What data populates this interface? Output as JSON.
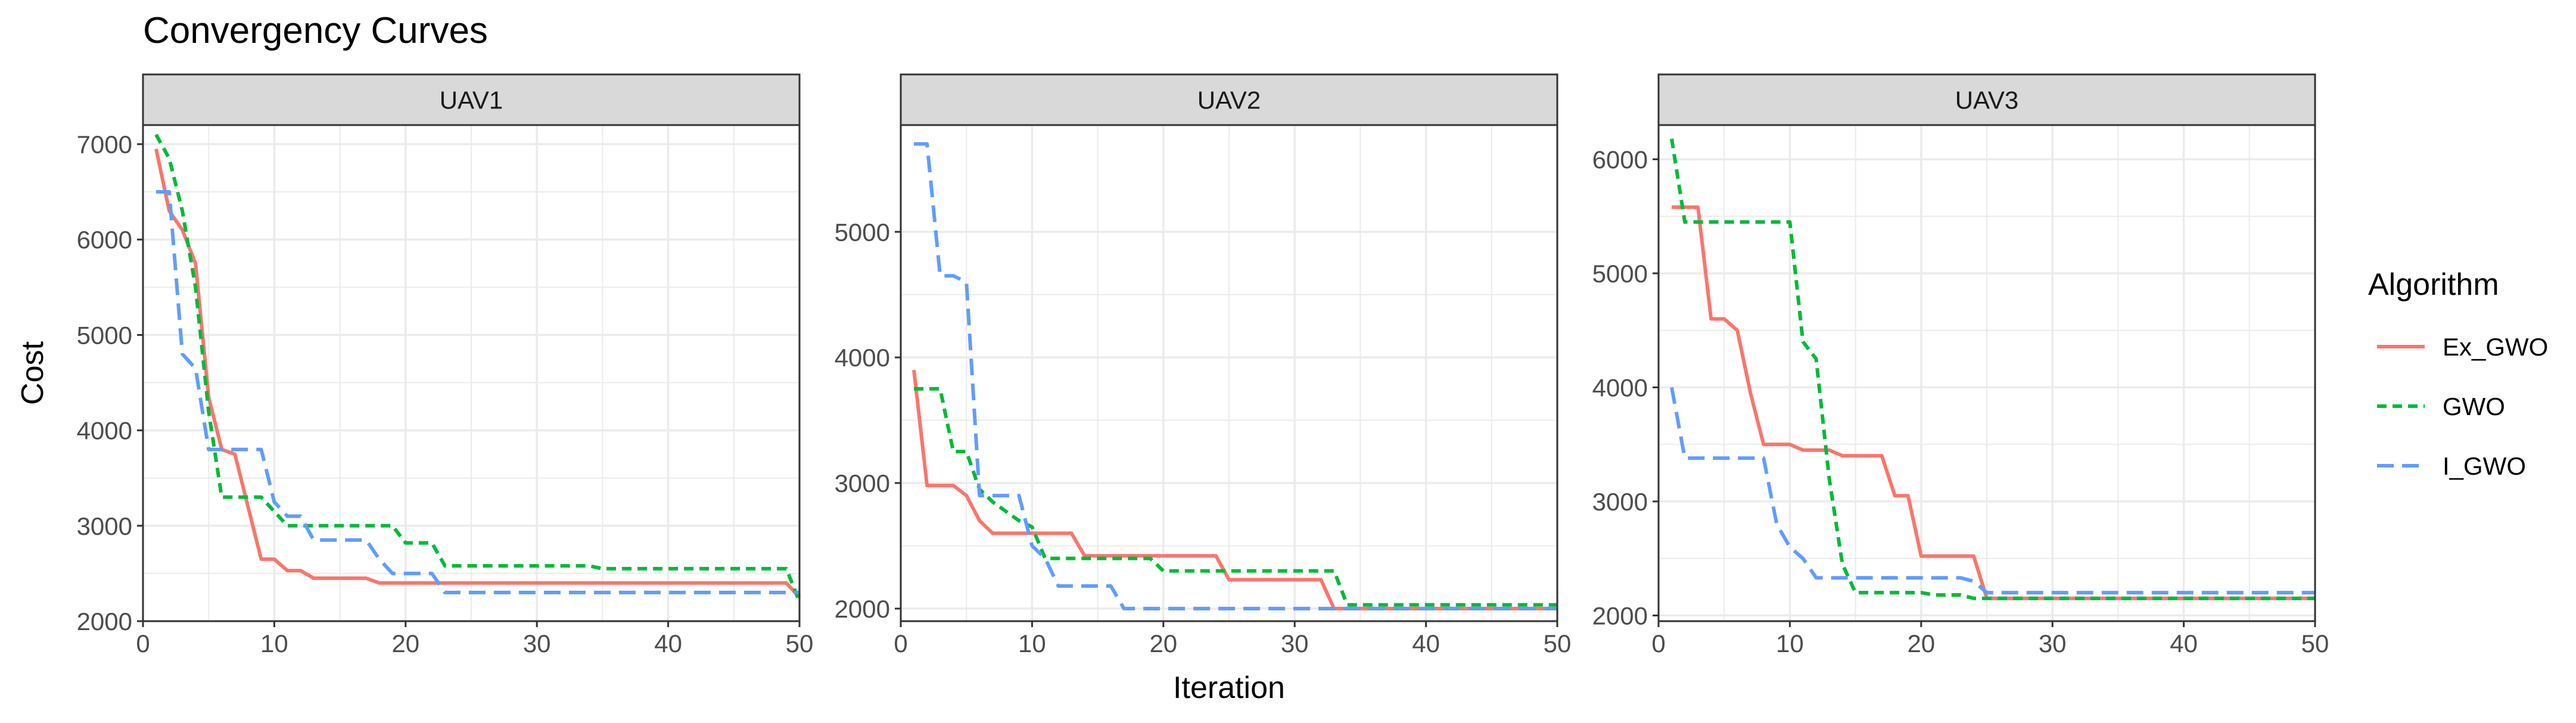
{
  "chart_data": {
    "type": "line",
    "title": "Convergency Curves",
    "xlabel": "Iteration",
    "ylabel": "Cost",
    "grid": true,
    "legend": {
      "title": "Algorithm",
      "placement": "right",
      "entries": [
        "Ex_GWO",
        "GWO",
        "I_GWO"
      ]
    },
    "colors": {
      "Ex_GWO": "#F8766D",
      "GWO": "#00BA38",
      "I_GWO": "#619CFF",
      "strip_fill": "#D9D9D9",
      "grid": "#EBEBEB",
      "axis_text": "#4D4D4D"
    },
    "panels": [
      {
        "strip": "UAV1",
        "xlim": [
          0,
          50
        ],
        "ylim": [
          2000,
          7200
        ],
        "xticks": [
          0,
          10,
          20,
          30,
          40,
          50
        ],
        "yticks": [
          2000,
          3000,
          4000,
          5000,
          6000,
          7000
        ],
        "series": [
          {
            "name": "Ex_GWO",
            "points": [
              [
                1,
                6950
              ],
              [
                2,
                6300
              ],
              [
                3,
                6100
              ],
              [
                4,
                5750
              ],
              [
                5,
                4350
              ],
              [
                6,
                3800
              ],
              [
                7,
                3750
              ],
              [
                8,
                3200
              ],
              [
                9,
                2650
              ],
              [
                10,
                2650
              ],
              [
                11,
                2530
              ],
              [
                12,
                2530
              ],
              [
                13,
                2450
              ],
              [
                17,
                2450
              ],
              [
                18,
                2400
              ],
              [
                49,
                2400
              ],
              [
                50,
                2250
              ]
            ]
          },
          {
            "name": "GWO",
            "points": [
              [
                1,
                7100
              ],
              [
                2,
                6850
              ],
              [
                3,
                6300
              ],
              [
                4,
                5500
              ],
              [
                5,
                4200
              ],
              [
                6,
                3300
              ],
              [
                9,
                3300
              ],
              [
                10,
                3150
              ],
              [
                11,
                3000
              ],
              [
                19,
                3000
              ],
              [
                20,
                2820
              ],
              [
                22,
                2820
              ],
              [
                23,
                2580
              ],
              [
                34,
                2580
              ],
              [
                35,
                2550
              ],
              [
                49,
                2550
              ],
              [
                50,
                2200
              ]
            ]
          },
          {
            "name": "I_GWO",
            "points": [
              [
                1,
                6500
              ],
              [
                2,
                6500
              ],
              [
                3,
                4800
              ],
              [
                4,
                4650
              ],
              [
                5,
                3800
              ],
              [
                9,
                3800
              ],
              [
                10,
                3250
              ],
              [
                11,
                3100
              ],
              [
                12,
                3100
              ],
              [
                13,
                2850
              ],
              [
                17,
                2850
              ],
              [
                18,
                2650
              ],
              [
                19,
                2500
              ],
              [
                22,
                2500
              ],
              [
                23,
                2300
              ],
              [
                50,
                2300
              ]
            ]
          }
        ]
      },
      {
        "strip": "UAV2",
        "xlim": [
          0,
          50
        ],
        "ylim": [
          1900,
          5850
        ],
        "xticks": [
          0,
          10,
          20,
          30,
          40,
          50
        ],
        "yticks": [
          2000,
          3000,
          4000,
          5000
        ],
        "series": [
          {
            "name": "Ex_GWO",
            "points": [
              [
                1,
                3900
              ],
              [
                2,
                2980
              ],
              [
                4,
                2980
              ],
              [
                5,
                2900
              ],
              [
                6,
                2700
              ],
              [
                7,
                2600
              ],
              [
                13,
                2600
              ],
              [
                14,
                2420
              ],
              [
                24,
                2420
              ],
              [
                25,
                2230
              ],
              [
                32,
                2230
              ],
              [
                33,
                2000
              ],
              [
                50,
                2000
              ]
            ]
          },
          {
            "name": "GWO",
            "points": [
              [
                1,
                3750
              ],
              [
                3,
                3750
              ],
              [
                4,
                3250
              ],
              [
                5,
                3250
              ],
              [
                6,
                2950
              ],
              [
                7,
                2850
              ],
              [
                9,
                2700
              ],
              [
                10,
                2650
              ],
              [
                11,
                2400
              ],
              [
                19,
                2400
              ],
              [
                20,
                2300
              ],
              [
                33,
                2300
              ],
              [
                34,
                2030
              ],
              [
                50,
                2030
              ]
            ]
          },
          {
            "name": "I_GWO",
            "points": [
              [
                1,
                5700
              ],
              [
                2,
                5700
              ],
              [
                3,
                4650
              ],
              [
                4,
                4650
              ],
              [
                5,
                4600
              ],
              [
                6,
                2900
              ],
              [
                9,
                2900
              ],
              [
                10,
                2500
              ],
              [
                11,
                2400
              ],
              [
                12,
                2180
              ],
              [
                16,
                2180
              ],
              [
                17,
                2000
              ],
              [
                50,
                2000
              ]
            ]
          }
        ]
      },
      {
        "strip": "UAV3",
        "xlim": [
          0,
          50
        ],
        "ylim": [
          1950,
          6300
        ],
        "xticks": [
          0,
          10,
          20,
          30,
          40,
          50
        ],
        "yticks": [
          2000,
          3000,
          4000,
          5000,
          6000
        ],
        "series": [
          {
            "name": "Ex_GWO",
            "points": [
              [
                1,
                5580
              ],
              [
                3,
                5580
              ],
              [
                4,
                4600
              ],
              [
                5,
                4600
              ],
              [
                6,
                4500
              ],
              [
                7,
                3950
              ],
              [
                8,
                3500
              ],
              [
                10,
                3500
              ],
              [
                11,
                3450
              ],
              [
                13,
                3450
              ],
              [
                14,
                3400
              ],
              [
                17,
                3400
              ],
              [
                18,
                3050
              ],
              [
                19,
                3050
              ],
              [
                20,
                2520
              ],
              [
                24,
                2520
              ],
              [
                25,
                2150
              ],
              [
                50,
                2150
              ]
            ]
          },
          {
            "name": "GWO",
            "points": [
              [
                1,
                6180
              ],
              [
                2,
                5450
              ],
              [
                10,
                5450
              ],
              [
                11,
                4400
              ],
              [
                12,
                4250
              ],
              [
                13,
                3200
              ],
              [
                14,
                2450
              ],
              [
                15,
                2200
              ],
              [
                20,
                2200
              ],
              [
                21,
                2180
              ],
              [
                23,
                2180
              ],
              [
                24,
                2150
              ],
              [
                50,
                2150
              ]
            ]
          },
          {
            "name": "I_GWO",
            "points": [
              [
                1,
                4000
              ],
              [
                2,
                3380
              ],
              [
                8,
                3380
              ],
              [
                9,
                2800
              ],
              [
                10,
                2600
              ],
              [
                11,
                2500
              ],
              [
                12,
                2330
              ],
              [
                23,
                2330
              ],
              [
                24,
                2300
              ],
              [
                25,
                2200
              ],
              [
                50,
                2200
              ]
            ]
          }
        ]
      }
    ]
  }
}
